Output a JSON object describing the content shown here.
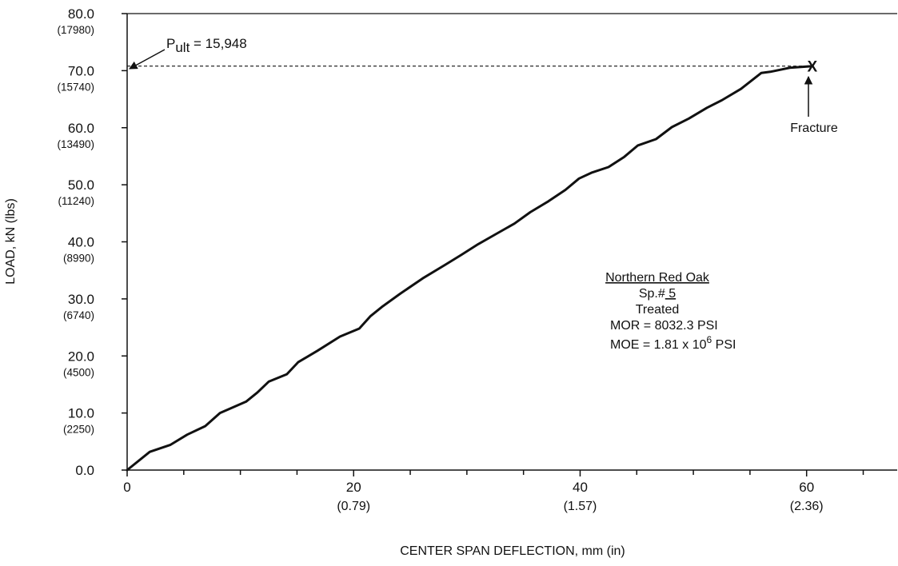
{
  "chart_data": {
    "type": "line",
    "xlabel": "CENTER SPAN DEFLECTION, mm (in)",
    "ylabel": "LOAD, kN (lbs)",
    "xlim": [
      0,
      68
    ],
    "ylim": [
      0,
      80
    ],
    "grid": false,
    "x_ticks": [
      {
        "value": 0,
        "label": "0",
        "sub": ""
      },
      {
        "value": 20,
        "label": "20",
        "sub": "(0.79)"
      },
      {
        "value": 40,
        "label": "40",
        "sub": "(1.57)"
      },
      {
        "value": 60,
        "label": "60",
        "sub": "(2.36)"
      }
    ],
    "y_ticks": [
      {
        "value": 0,
        "label": "0.0",
        "sub": ""
      },
      {
        "value": 10,
        "label": "10.0",
        "sub": "(2250)"
      },
      {
        "value": 20,
        "label": "20.0",
        "sub": "(4500)"
      },
      {
        "value": 30,
        "label": "30.0",
        "sub": "(6740)"
      },
      {
        "value": 40,
        "label": "40.0",
        "sub": "(8990)"
      },
      {
        "value": 50,
        "label": "50.0",
        "sub": "(11240)"
      },
      {
        "value": 60,
        "label": "60.0",
        "sub": "(13490)"
      },
      {
        "value": 70,
        "label": "70.0",
        "sub": "(15740)"
      },
      {
        "value": 80,
        "label": "80.0",
        "sub": "(17980)"
      }
    ],
    "series": [
      {
        "x": [
          0,
          2.0,
          3.8,
          5.3,
          6.9,
          8.2,
          10.5,
          11.5,
          12.5,
          14.1,
          15.1,
          16.8,
          18.8,
          20.5,
          21.5,
          22.5,
          24.1,
          26.1,
          28.1,
          29.5,
          31.0,
          32.6,
          34.2,
          35.6,
          37.2,
          38.7,
          39.9,
          41.0,
          42.5,
          43.9,
          45.1,
          46.7,
          48.1,
          49.6,
          51.2,
          52.5,
          54.2,
          56.0,
          56.8,
          58.5,
          60.5
        ],
        "y": [
          0,
          3.2,
          4.4,
          6.2,
          7.7,
          10.0,
          12.0,
          13.6,
          15.5,
          16.8,
          18.9,
          20.9,
          23.4,
          24.8,
          27.0,
          28.6,
          30.9,
          33.6,
          36.0,
          37.7,
          39.6,
          41.4,
          43.2,
          45.2,
          47.1,
          49.1,
          51.1,
          52.1,
          53.1,
          54.9,
          56.9,
          58.0,
          60.1,
          61.6,
          63.5,
          64.8,
          66.8,
          69.6,
          69.8,
          70.5,
          70.8
        ]
      }
    ],
    "fracture_point": {
      "x": 60.5,
      "y": 70.8
    }
  },
  "annotations": {
    "pult_symbol": "P",
    "pult_subscript": "ult",
    "pult_text": " = 15,948",
    "fracture_label": "Fracture",
    "fracture_mark": "X",
    "specimen_name": "Northern Red Oak",
    "specimen_no_prefix": "Sp.#",
    "specimen_no": " 5 ",
    "treatment": "Treated",
    "mor": "MOR = 8032.3 PSI",
    "moe_prefix": "MOE = 1.81 x 10",
    "moe_exp": "6",
    "moe_suffix": " PSI"
  }
}
